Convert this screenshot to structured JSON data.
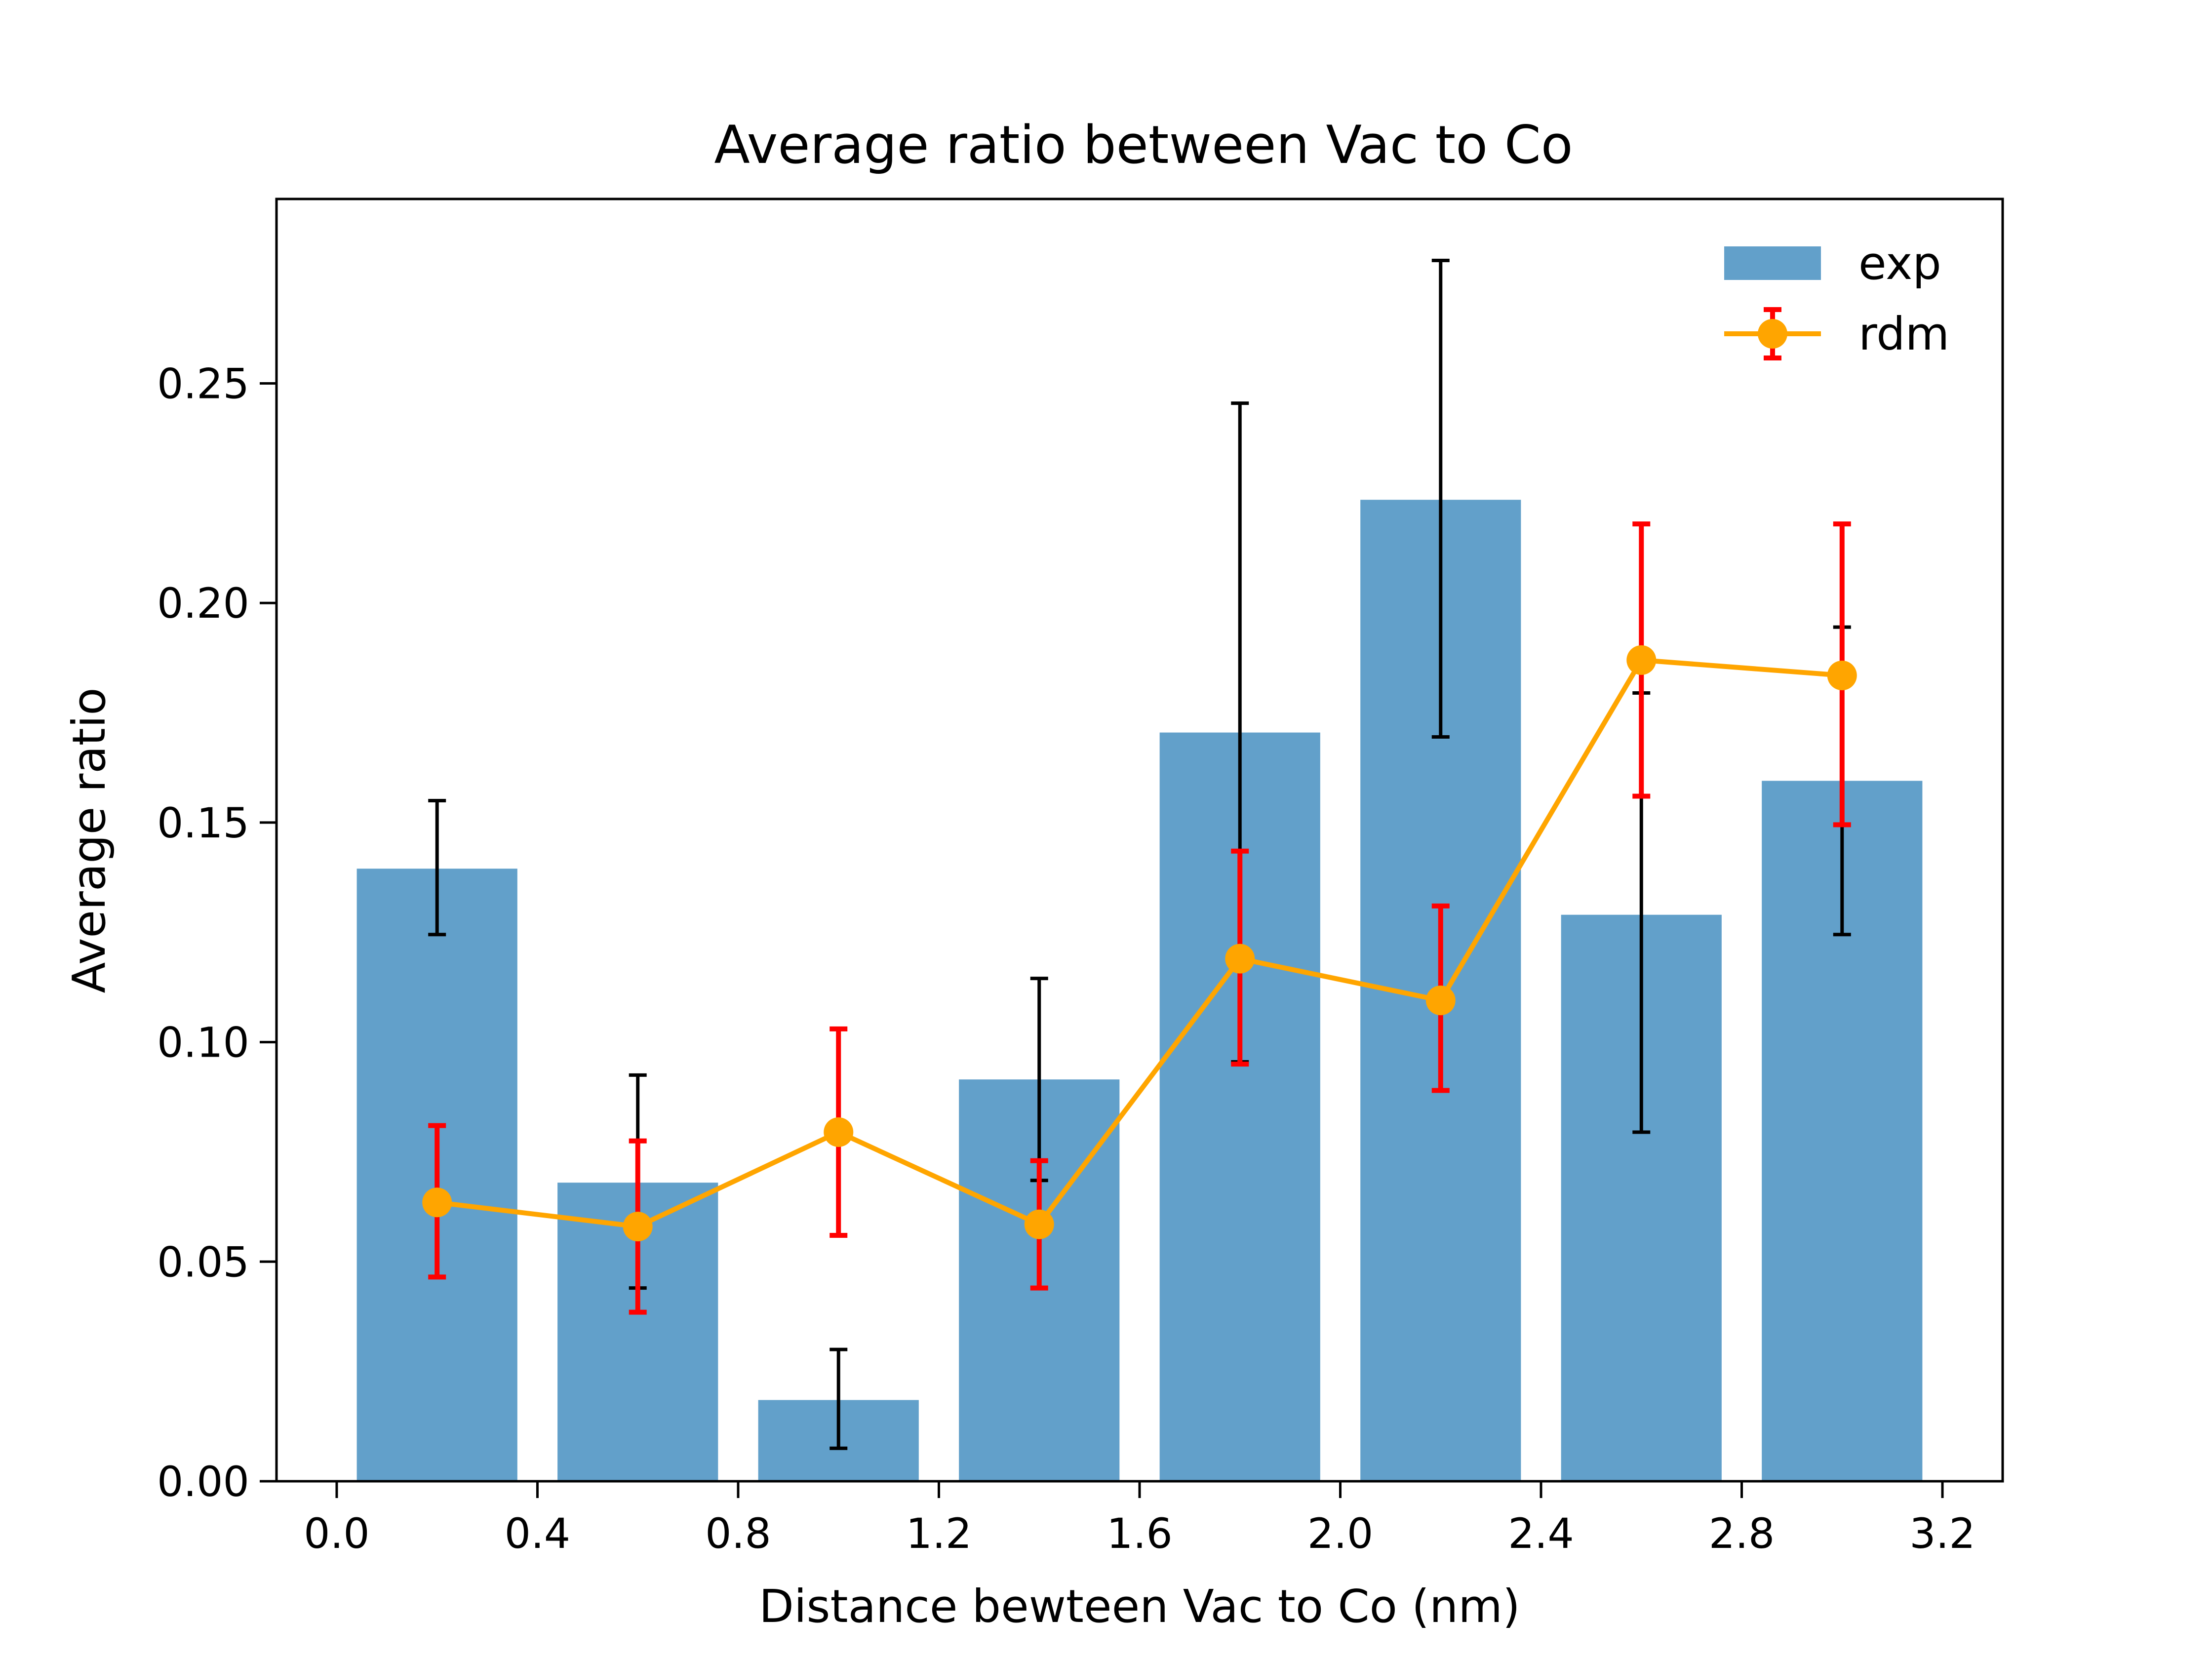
{
  "chart_data": {
    "type": "bar",
    "title": "Average ratio between Vac to Co",
    "xlabel": "Distance bewteen Vac to Co (nm)",
    "ylabel": "Average ratio",
    "xlim": [
      -0.12,
      3.32
    ],
    "ylim": [
      0.0,
      0.292
    ],
    "xticks": [
      0.0,
      0.4,
      0.8,
      1.2,
      1.6,
      2.0,
      2.4,
      2.8,
      3.2
    ],
    "xtick_labels": [
      "0.0",
      "0.4",
      "0.8",
      "1.2",
      "1.6",
      "2.0",
      "2.4",
      "2.8",
      "3.2"
    ],
    "yticks": [
      0.0,
      0.05,
      0.1,
      0.15,
      0.2,
      0.25
    ],
    "ytick_labels": [
      "0.00",
      "0.05",
      "0.10",
      "0.15",
      "0.20",
      "0.25"
    ],
    "grid": false,
    "legend_position": "upper right",
    "bar_width": 0.32,
    "series": [
      {
        "name": "exp",
        "kind": "bar",
        "color": "#1f77b4",
        "x": [
          0.2,
          0.6,
          1.0,
          1.4,
          1.8,
          2.2,
          2.6,
          3.0
        ],
        "values": [
          0.1395,
          0.068,
          0.0185,
          0.0915,
          0.1705,
          0.2235,
          0.129,
          0.1595
        ],
        "err_low": [
          0.1245,
          0.044,
          0.0075,
          0.0685,
          0.0955,
          0.1695,
          0.0795,
          0.1245
        ],
        "err_high": [
          0.155,
          0.0925,
          0.03,
          0.1145,
          0.2455,
          0.278,
          0.1795,
          0.1945
        ],
        "err_color": "#000000"
      },
      {
        "name": "rdm",
        "kind": "line",
        "color": "#ffa500",
        "x": [
          0.2,
          0.6,
          1.0,
          1.4,
          1.8,
          2.2,
          2.6,
          3.0
        ],
        "values": [
          0.0635,
          0.058,
          0.0795,
          0.0585,
          0.119,
          0.1095,
          0.187,
          0.1835
        ],
        "err_low": [
          0.0465,
          0.0385,
          0.056,
          0.044,
          0.095,
          0.089,
          0.156,
          0.1495
        ],
        "err_high": [
          0.081,
          0.0775,
          0.103,
          0.073,
          0.1435,
          0.131,
          0.218,
          0.218
        ],
        "err_color": "#ff0000"
      }
    ]
  }
}
